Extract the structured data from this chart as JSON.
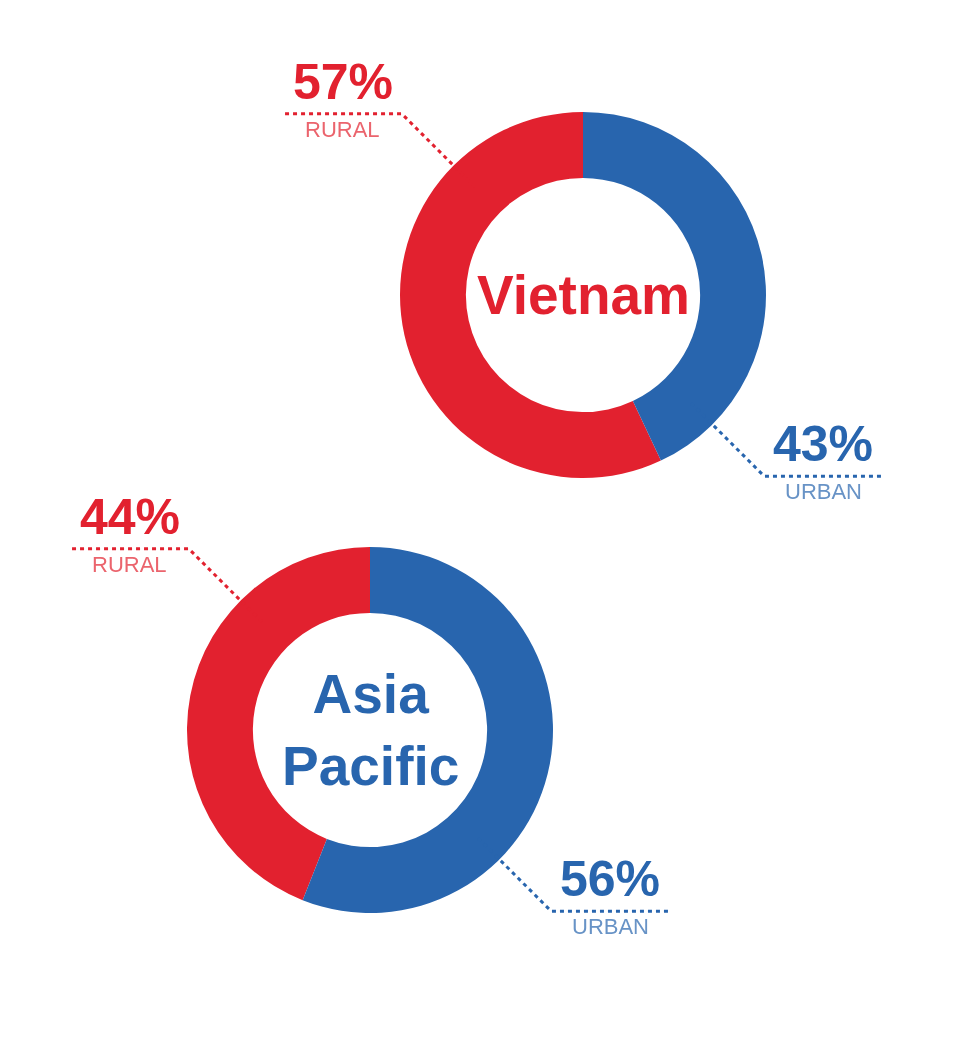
{
  "chart_data": [
    {
      "type": "donut",
      "title": "Vietnam",
      "categories": [
        "RURAL",
        "URBAN"
      ],
      "values": [
        57,
        43
      ],
      "colors": [
        "#e2212f",
        "#2865ae"
      ],
      "value_labels": [
        "57%",
        "43%"
      ]
    },
    {
      "type": "donut",
      "title": "Asia Pacific",
      "categories": [
        "RURAL",
        "URBAN"
      ],
      "values": [
        44,
        56
      ],
      "colors": [
        "#e2212f",
        "#2865ae"
      ],
      "value_labels": [
        "44%",
        "56%"
      ]
    }
  ]
}
